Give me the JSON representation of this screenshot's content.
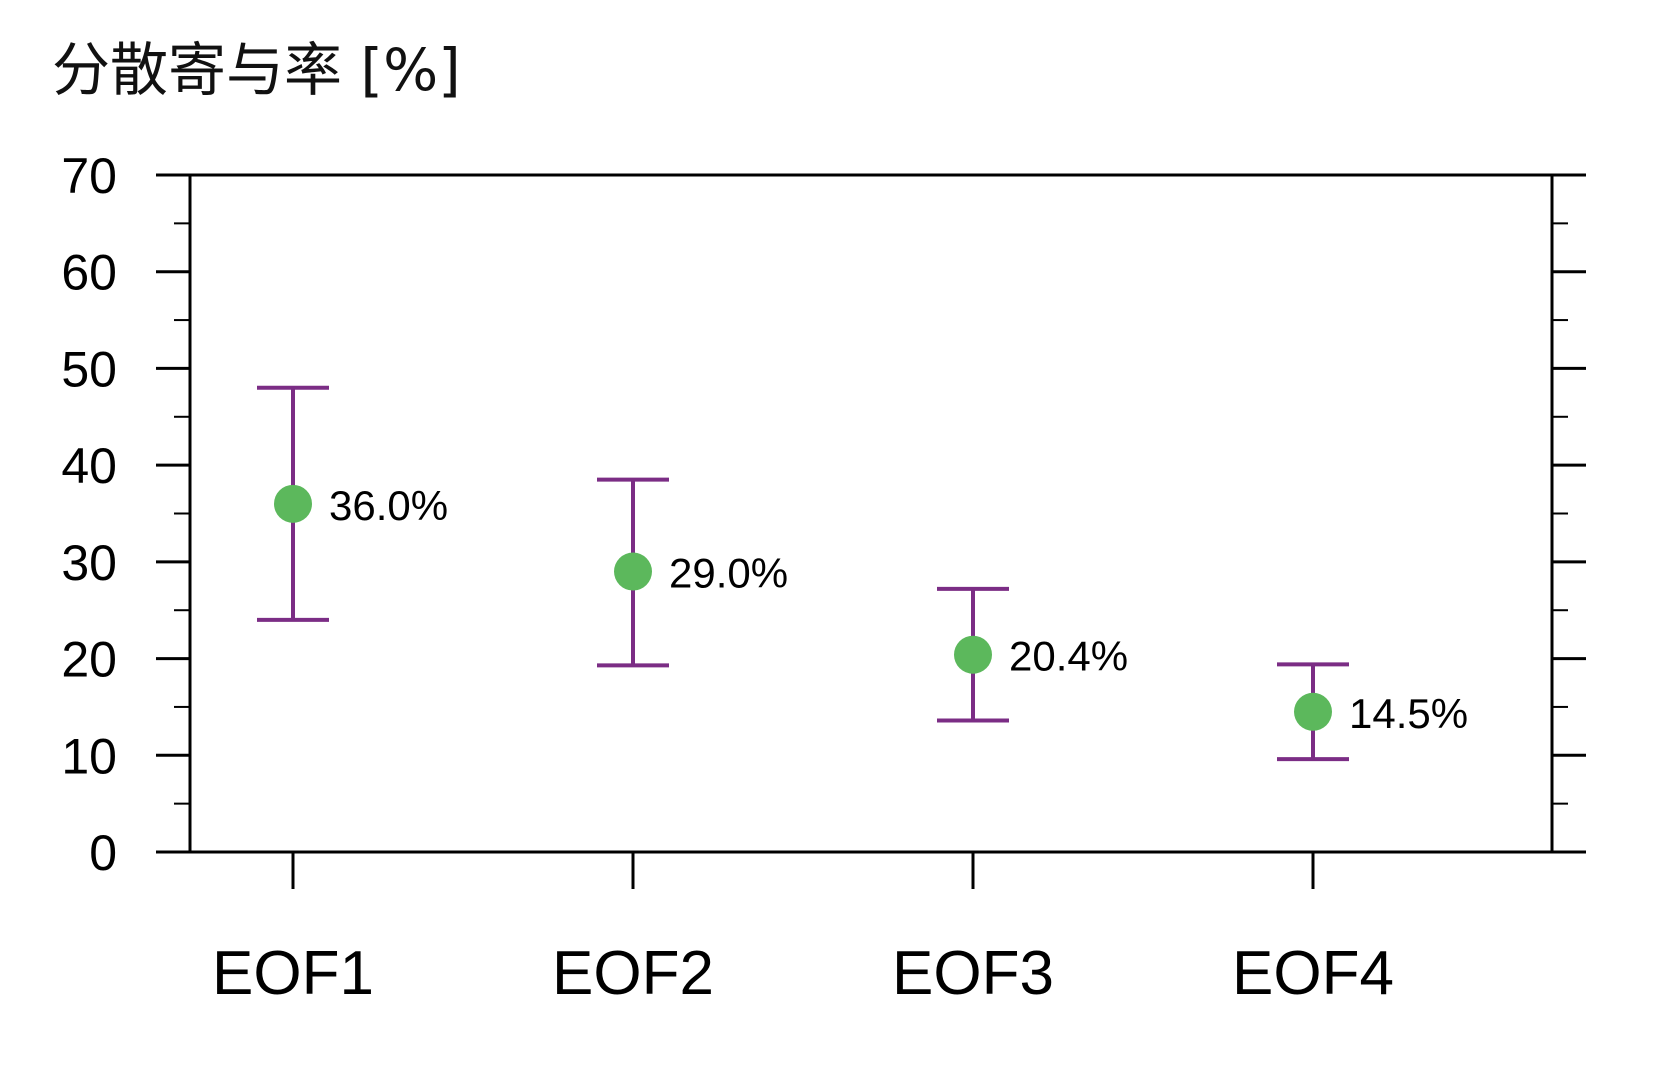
{
  "chart_data": {
    "type": "scatter",
    "title": "分散寄与率 [%]",
    "xlabel": "",
    "ylabel": "",
    "categories": [
      "EOF1",
      "EOF2",
      "EOF3",
      "EOF4"
    ],
    "values": [
      36.0,
      29.0,
      20.4,
      14.5
    ],
    "error_upper": [
      48.0,
      38.5,
      27.2,
      19.4
    ],
    "error_lower": [
      24.0,
      19.3,
      13.6,
      9.6
    ],
    "value_labels": [
      "36.0%",
      "29.0%",
      "20.4%",
      "14.5%"
    ],
    "ylim": [
      0,
      70
    ],
    "y_ticks": [
      0,
      10,
      20,
      30,
      40,
      50,
      60,
      70
    ],
    "y_tick_labels": [
      "0",
      "10",
      "20",
      "30",
      "40",
      "50",
      "60",
      "70"
    ],
    "y_minor_step": 5,
    "grid": false,
    "marker_color": "#5cb85c",
    "errorbar_color": "#7b2d85"
  }
}
